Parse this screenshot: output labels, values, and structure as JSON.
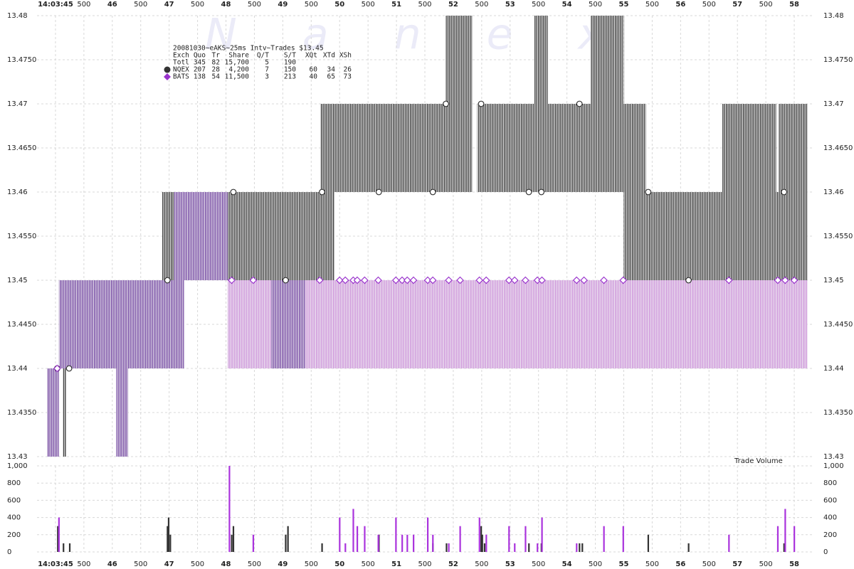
{
  "chart_data": [
    {
      "type": "quote-bands",
      "title": "20081030~eAKS~25ms Intv~Trades $13.45",
      "watermark": "Nanex",
      "xlim": [
        44.675,
        58.325
      ],
      "xticks": [
        {
          "value": 45,
          "label": "14:03:45"
        },
        {
          "value": 45.5,
          "label": "500"
        },
        46,
        {
          "value": 46.5,
          "label": "500"
        },
        47,
        {
          "value": 47.5,
          "label": "500"
        },
        48,
        {
          "value": 48.5,
          "label": "500"
        },
        49,
        {
          "value": 49.5,
          "label": "500"
        },
        50,
        {
          "value": 50.5,
          "label": "500"
        },
        51,
        {
          "value": 51.5,
          "label": "500"
        },
        52,
        {
          "value": 52.5,
          "label": "500"
        },
        53,
        {
          "value": 53.5,
          "label": "500"
        },
        54,
        {
          "value": 54.5,
          "label": "500"
        },
        55,
        {
          "value": 55.5,
          "label": "500"
        },
        56,
        {
          "value": 56.5,
          "label": "500"
        },
        57,
        {
          "value": 57.5,
          "label": "500"
        },
        58
      ],
      "ylim": [
        13.43,
        13.48
      ],
      "yticks": [
        13.43,
        {
          "value": 13.435,
          "label": "13.4350"
        },
        13.44,
        {
          "value": 13.445,
          "label": "13.4450"
        },
        13.45,
        {
          "value": 13.455,
          "label": "13.4550"
        },
        13.46,
        {
          "value": 13.465,
          "label": "13.4650"
        },
        13.47,
        {
          "value": 13.475,
          "label": "13.4750"
        },
        13.48
      ],
      "grid": true,
      "legend_table": {
        "header": [
          "Exch",
          "Quo",
          "Tr",
          "Share",
          "Q/T",
          "S/T",
          "XQt",
          "XTd",
          "XSh"
        ],
        "total": [
          "Totl",
          "345",
          "82",
          "15,700",
          "5",
          "190"
        ]
      },
      "series": [
        {
          "name": "NQEX",
          "color": "#333333",
          "marker": "circle",
          "stats": [
            "207",
            "28",
            "4,200",
            "7",
            "150",
            "60",
            "34",
            "26"
          ],
          "bands": [
            [
              45.13,
              45.19,
              13.43,
              13.44
            ],
            [
              46.88,
              48.03,
              13.45,
              13.46
            ],
            [
              48.03,
              49.91,
              13.45,
              13.46
            ],
            [
              49.66,
              51.87,
              13.46,
              13.47
            ],
            [
              51.87,
              52.33,
              13.46,
              13.48
            ],
            [
              52.42,
              53.42,
              13.46,
              13.47
            ],
            [
              53.42,
              53.67,
              13.46,
              13.48
            ],
            [
              53.67,
              54.42,
              13.46,
              13.47
            ],
            [
              54.42,
              55.0,
              13.46,
              13.48
            ],
            [
              55.0,
              55.39,
              13.45,
              13.47
            ],
            [
              55.39,
              56.73,
              13.45,
              13.46
            ],
            [
              56.73,
              57.68,
              13.45,
              13.47
            ],
            [
              57.68,
              58.23,
              13.45,
              13.46
            ],
            [
              57.73,
              58.23,
              13.46,
              13.47
            ]
          ],
          "x": [
            45.03,
            45.24,
            46.97,
            48.13,
            49.05,
            49.69,
            50.69,
            51.64,
            51.87,
            52.49,
            53.33,
            53.55,
            54.22,
            55.43,
            56.14,
            57.82
          ],
          "values": [
            13.44,
            13.44,
            13.45,
            13.46,
            13.45,
            13.46,
            13.46,
            13.46,
            13.47,
            13.47,
            13.46,
            13.46,
            13.47,
            13.46,
            13.45,
            13.46
          ]
        },
        {
          "name": "BATS",
          "color": "#9933cc",
          "marker": "diamond",
          "stats": [
            "138",
            "54",
            "11,500",
            "3",
            "213",
            "40",
            "65",
            "73"
          ],
          "bands": [
            [
              44.85,
              45.06,
              13.43,
              13.44
            ],
            [
              45.06,
              47.27,
              13.44,
              13.45
            ],
            [
              46.07,
              46.28,
              13.43,
              13.44
            ],
            [
              47.09,
              48.03,
              13.45,
              13.46
            ],
            [
              48.03,
              48.8,
              13.44,
              13.45
            ],
            [
              48.8,
              49.39,
              13.44,
              13.45
            ],
            [
              49.39,
              58.23,
              13.44,
              13.45
            ]
          ],
          "band_colors": [
            "#6a3a9c",
            "#6a3a9c",
            "#6a3a9c",
            "#6a3a9c",
            "#c98ad8",
            "#6a3a9c",
            "#c98ad8"
          ],
          "x": [
            45.03,
            48.1,
            48.48,
            49.65,
            50.0,
            50.1,
            50.24,
            50.31,
            50.44,
            50.68,
            50.99,
            51.1,
            51.19,
            51.3,
            51.55,
            51.64,
            51.92,
            52.12,
            52.46,
            52.58,
            52.98,
            53.08,
            53.27,
            53.48,
            53.56,
            54.17,
            54.3,
            54.65,
            54.99,
            56.85,
            57.71,
            57.84,
            58.0
          ],
          "values": [
            13.44,
            13.45,
            13.45,
            13.45,
            13.45,
            13.45,
            13.45,
            13.45,
            13.45,
            13.45,
            13.45,
            13.45,
            13.45,
            13.45,
            13.45,
            13.45,
            13.45,
            13.45,
            13.45,
            13.45,
            13.45,
            13.45,
            13.45,
            13.45,
            13.45,
            13.45,
            13.45,
            13.45,
            13.45,
            13.45,
            13.45,
            13.45,
            13.45
          ]
        }
      ]
    },
    {
      "type": "bar",
      "title": "Trade Volume",
      "xlim": [
        44.675,
        58.325
      ],
      "ylim": [
        0,
        1000
      ],
      "yticks": [
        0,
        200,
        400,
        600,
        800,
        {
          "value": 1000,
          "label": "1,000"
        }
      ],
      "grid": true,
      "series": [
        {
          "color": "#333333",
          "x": [
            45.04,
            45.14,
            45.25,
            46.97,
            46.99,
            47.02,
            48.1,
            48.13,
            49.05,
            49.09,
            49.69,
            50.69,
            51.64,
            51.88,
            52.49,
            52.51,
            52.55,
            53.33,
            53.55,
            54.22,
            54.27,
            55.43,
            56.14,
            57.82
          ],
          "values": [
            300,
            100,
            100,
            300,
            400,
            200,
            200,
            300,
            200,
            300,
            100,
            200,
            100,
            100,
            300,
            200,
            100,
            100,
            100,
            100,
            100,
            200,
            100,
            100
          ]
        },
        {
          "color": "#aa33dd",
          "x": [
            45.06,
            48.06,
            48.48,
            50.0,
            50.1,
            50.24,
            50.31,
            50.44,
            50.68,
            50.99,
            51.1,
            51.19,
            51.3,
            51.55,
            51.64,
            51.92,
            52.12,
            52.46,
            52.58,
            52.98,
            53.08,
            53.27,
            53.48,
            53.56,
            54.17,
            54.65,
            54.99,
            56.85,
            57.71,
            57.84,
            58.0
          ],
          "values": [
            400,
            1000,
            200,
            400,
            100,
            500,
            300,
            300,
            200,
            400,
            200,
            200,
            200,
            400,
            200,
            100,
            300,
            400,
            200,
            300,
            100,
            300,
            100,
            400,
            100,
            300,
            300,
            200,
            300,
            500,
            300
          ]
        }
      ]
    }
  ]
}
